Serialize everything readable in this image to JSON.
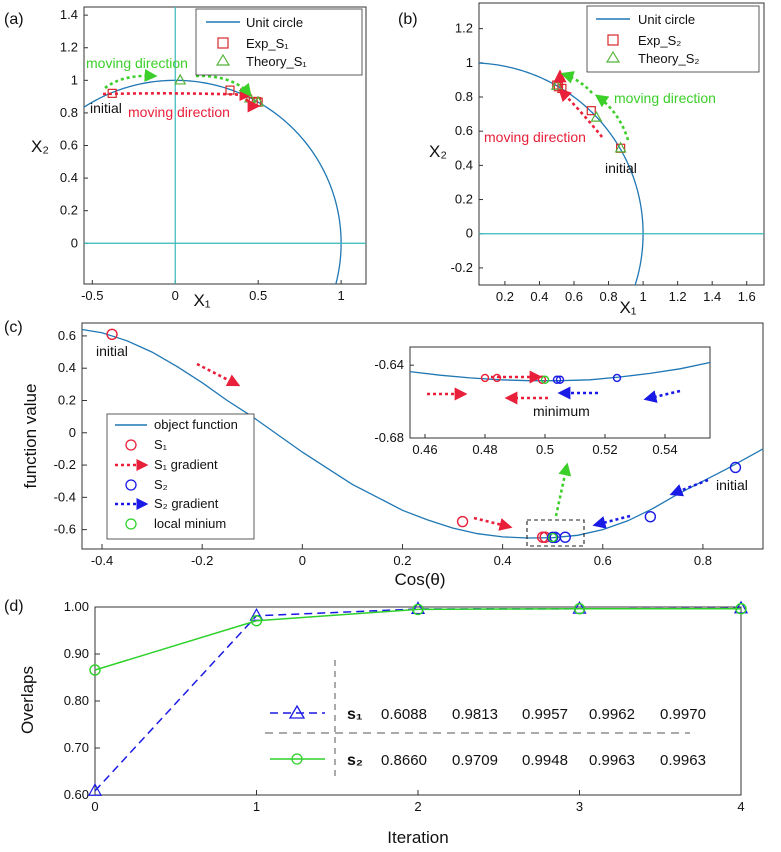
{
  "colors": {
    "circle": "#1f77b4",
    "exp": "#d62728",
    "theory": "#55b33a",
    "green_arrow": "#3ccf2a",
    "red_arrow": "#e8203a",
    "blue": "#1a1ae6",
    "s1_line": "#1a1ae6",
    "s2_line": "#2ed12a",
    "axis_line": "#36b8b8"
  },
  "panels": {
    "a": "(a)",
    "b": "(b)",
    "c": "(c)",
    "d": "(d)"
  },
  "chart_data": [
    {
      "id": "a",
      "type": "scatter",
      "title": "",
      "xlabel": "X₁",
      "ylabel": "X₂",
      "xlim": [
        -0.55,
        1.15
      ],
      "ylim": [
        -0.25,
        1.45
      ],
      "xticks": [
        -0.5,
        0,
        0.5,
        1
      ],
      "xtick_labels": [
        "-0.5",
        "0",
        "0.5",
        "1"
      ],
      "yticks": [
        0,
        0.2,
        0.4,
        0.6,
        0.8,
        1,
        1.2,
        1.4
      ],
      "ytick_labels": [
        "0",
        "0.2",
        "0.4",
        "0.6",
        "0.8",
        "1",
        "1.2",
        "1.4"
      ],
      "unit_circle": true,
      "legend": [
        "Unit circle",
        "Exp_S₁",
        "Theory_S₁"
      ],
      "exp_points": [
        [
          -0.38,
          0.92
        ],
        [
          0.33,
          0.94
        ],
        [
          0.47,
          0.87
        ],
        [
          0.49,
          0.87
        ],
        [
          0.5,
          0.866
        ]
      ],
      "theory_points": [
        [
          0.03,
          1.0
        ],
        [
          0.45,
          0.89
        ],
        [
          0.5,
          0.866
        ]
      ],
      "annotations": {
        "initial": "initial",
        "green": "moving direction",
        "red": "moving direction"
      }
    },
    {
      "id": "b",
      "type": "scatter",
      "title": "",
      "xlabel": "X₁",
      "ylabel": "X₂",
      "xlim": [
        0.05,
        1.7
      ],
      "ylim": [
        -0.3,
        1.35
      ],
      "xticks": [
        0.2,
        0.4,
        0.6,
        0.8,
        1,
        1.2,
        1.4,
        1.6
      ],
      "xtick_labels": [
        "0.2",
        "0.4",
        "0.6",
        "0.8",
        "1",
        "1.2",
        "1.4",
        "1.6"
      ],
      "yticks": [
        -0.2,
        0,
        0.2,
        0.4,
        0.6,
        0.8,
        1,
        1.2
      ],
      "ytick_labels": [
        "-0.2",
        "0",
        "0.2",
        "0.4",
        "0.6",
        "0.8",
        "1",
        "1.2"
      ],
      "unit_circle": true,
      "legend": [
        "Unit circle",
        "Exp_S₂",
        "Theory_S₂"
      ],
      "exp_points": [
        [
          0.87,
          0.5
        ],
        [
          0.7,
          0.72
        ],
        [
          0.53,
          0.85
        ],
        [
          0.5,
          0.87
        ],
        [
          0.51,
          0.86
        ]
      ],
      "theory_points": [
        [
          0.87,
          0.5
        ],
        [
          0.73,
          0.68
        ],
        [
          0.5,
          0.866
        ]
      ],
      "annotations": {
        "initial": "initial",
        "green": "moving direction",
        "red": "moving direction"
      }
    },
    {
      "id": "c",
      "type": "line",
      "title": "",
      "xlabel": "Cos(θ)",
      "ylabel": "function value",
      "xlim": [
        -0.44,
        0.92
      ],
      "ylim": [
        -0.72,
        0.68
      ],
      "xticks": [
        -0.4,
        -0.2,
        0,
        0.2,
        0.4,
        0.6,
        0.8
      ],
      "xtick_labels": [
        "-0.4",
        "-0.2",
        "0",
        "0.2",
        "0.4",
        "0.6",
        "0.8"
      ],
      "yticks": [
        -0.6,
        -0.4,
        -0.2,
        0,
        0.2,
        0.4,
        0.6
      ],
      "ytick_labels": [
        "-0.6",
        "-0.4",
        "-0.2",
        "0",
        "0.2",
        "0.4",
        "0.6"
      ],
      "curve_x": [
        -0.44,
        -0.4,
        -0.35,
        -0.3,
        -0.25,
        -0.2,
        -0.15,
        -0.1,
        -0.05,
        0.0,
        0.05,
        0.1,
        0.15,
        0.2,
        0.25,
        0.3,
        0.35,
        0.4,
        0.45,
        0.5,
        0.55,
        0.6,
        0.65,
        0.7,
        0.75,
        0.8,
        0.85,
        0.92
      ],
      "curve_y": [
        0.64,
        0.62,
        0.57,
        0.5,
        0.41,
        0.31,
        0.2,
        0.1,
        -0.01,
        -0.12,
        -0.22,
        -0.32,
        -0.4,
        -0.48,
        -0.54,
        -0.59,
        -0.625,
        -0.645,
        -0.652,
        -0.65,
        -0.635,
        -0.6,
        -0.545,
        -0.47,
        -0.38,
        -0.3,
        -0.22,
        -0.1
      ],
      "s1_points": [
        [
          -0.38,
          0.61
        ],
        [
          0.32,
          -0.55
        ],
        [
          0.48,
          -0.647
        ],
        [
          0.485,
          -0.647
        ]
      ],
      "s2_points": [
        [
          0.865,
          -0.215
        ],
        [
          0.695,
          -0.52
        ],
        [
          0.525,
          -0.647
        ],
        [
          0.505,
          -0.648
        ],
        [
          0.5,
          -0.648
        ]
      ],
      "local_min": [
        0.5,
        -0.649
      ],
      "legend": [
        "object function",
        "S₁",
        "S₁ gradient",
        "S₂",
        "S₂ gradient",
        "local minium"
      ],
      "annotations": {
        "initial_left": "initial",
        "initial_right": "initial",
        "minimum": "minimum"
      },
      "inset": {
        "xlim": [
          0.455,
          0.555
        ],
        "ylim": [
          -0.68,
          -0.63
        ],
        "xticks": [
          0.46,
          0.48,
          0.5,
          0.52,
          0.54
        ],
        "xtick_labels": [
          "0.46",
          "0.48",
          "0.5",
          "0.52",
          "0.54"
        ],
        "yticks": [
          -0.68,
          -0.64
        ],
        "ytick_labels": [
          "-0.68",
          "-0.64"
        ],
        "curve_x": [
          0.455,
          0.465,
          0.475,
          0.485,
          0.495,
          0.505,
          0.515,
          0.525,
          0.535,
          0.545,
          0.555
        ],
        "curve_y": [
          -0.6435,
          -0.6455,
          -0.647,
          -0.648,
          -0.6485,
          -0.6485,
          -0.648,
          -0.6465,
          -0.6445,
          -0.642,
          -0.6385
        ],
        "s1_points": [
          [
            0.48,
            -0.647
          ],
          [
            0.484,
            -0.647
          ],
          [
            0.499,
            -0.648
          ]
        ],
        "s2_points": [
          [
            0.524,
            -0.647
          ],
          [
            0.505,
            -0.648
          ],
          [
            0.504,
            -0.648
          ]
        ],
        "local_min": [
          0.5,
          -0.648
        ]
      }
    },
    {
      "id": "d",
      "type": "line",
      "title": "",
      "xlabel": "Iteration",
      "ylabel": "Overlaps",
      "xlim": [
        0,
        4
      ],
      "ylim": [
        0.6,
        1.0
      ],
      "xticks": [
        0,
        1,
        2,
        3,
        4
      ],
      "xtick_labels": [
        "0",
        "1",
        "2",
        "3",
        "4"
      ],
      "yticks": [
        0.6,
        0.7,
        0.8,
        0.9,
        1.0
      ],
      "ytick_labels": [
        "0.60",
        "0.70",
        "0.80",
        "0.90",
        "1.00"
      ],
      "x": [
        0,
        1,
        2,
        3,
        4
      ],
      "series": [
        {
          "name": "s₁",
          "values": [
            0.6088,
            0.9813,
            0.9957,
            0.9962,
            0.997
          ],
          "labels": [
            "0.6088",
            "0.9813",
            "0.9957",
            "0.9962",
            "0.9970"
          ]
        },
        {
          "name": "s₂",
          "values": [
            0.866,
            0.9709,
            0.9948,
            0.9963,
            0.9963
          ],
          "labels": [
            "0.8660",
            "0.9709",
            "0.9948",
            "0.9963",
            "0.9963"
          ]
        }
      ]
    }
  ]
}
